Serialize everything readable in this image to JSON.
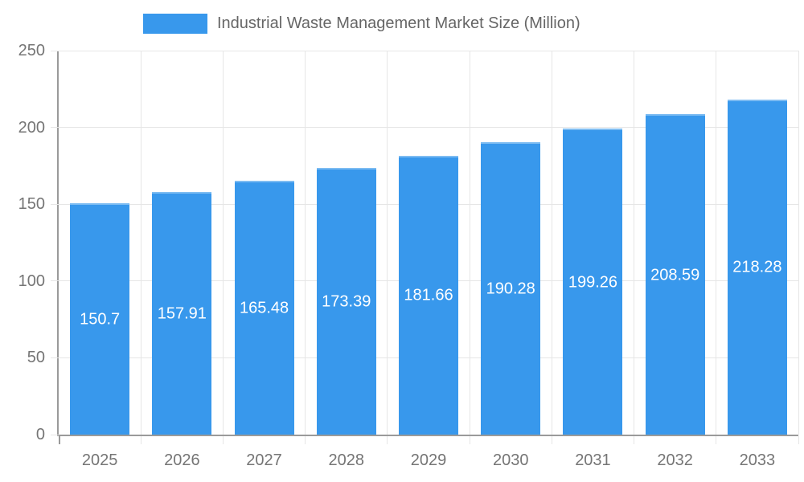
{
  "chart_data": {
    "type": "bar",
    "title": "Industrial Waste Management Market Size (Million)",
    "series_name": "Industrial Waste Management Market Size (Million)",
    "categories": [
      "2025",
      "2026",
      "2027",
      "2028",
      "2029",
      "2030",
      "2031",
      "2032",
      "2033"
    ],
    "values": [
      150.7,
      157.91,
      165.48,
      173.39,
      181.66,
      190.28,
      199.26,
      208.59,
      218.28
    ],
    "value_labels": [
      "150.7",
      "157.91",
      "165.48",
      "173.39",
      "181.66",
      "190.28",
      "199.26",
      "208.59",
      "218.28"
    ],
    "xlabel": "",
    "ylabel": "",
    "ylim": [
      0,
      250
    ],
    "yticks": [
      0,
      50,
      100,
      150,
      200,
      250
    ],
    "grid": true,
    "legend_position": "top",
    "bar_value_label_position": "center"
  },
  "colors": {
    "bar": "#3898ec",
    "gridline": "#e6e6e6",
    "axis": "#9a9a9a",
    "tick_label": "#757575",
    "legend_text": "#666666",
    "bar_label": "#ffffff",
    "background": "#ffffff"
  }
}
